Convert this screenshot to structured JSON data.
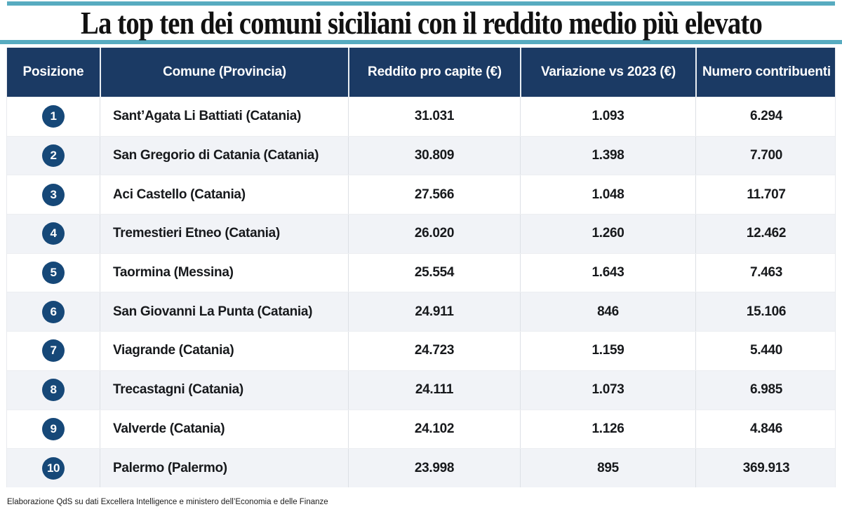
{
  "title": "La top ten dei comuni siciliani con il reddito medio più elevato",
  "table": {
    "headers": [
      "Posizione",
      "Comune (Provincia)",
      "Reddito pro capite (€)",
      "Variazione vs 2023 (€)",
      "Numero contribuenti"
    ],
    "rows": [
      {
        "position": "1",
        "comune": "Sant’Agata Li Battiati (Catania)",
        "reddito": "31.031",
        "variazione": "1.093",
        "contribuenti": "6.294"
      },
      {
        "position": "2",
        "comune": "San Gregorio di Catania (Catania)",
        "reddito": "30.809",
        "variazione": "1.398",
        "contribuenti": "7.700"
      },
      {
        "position": "3",
        "comune": "Aci Castello (Catania)",
        "reddito": "27.566",
        "variazione": "1.048",
        "contribuenti": "11.707"
      },
      {
        "position": "4",
        "comune": "Tremestieri Etneo (Catania)",
        "reddito": "26.020",
        "variazione": "1.260",
        "contribuenti": "12.462"
      },
      {
        "position": "5",
        "comune": "Taormina (Messina)",
        "reddito": "25.554",
        "variazione": "1.643",
        "contribuenti": "7.463"
      },
      {
        "position": "6",
        "comune": "San Giovanni La Punta (Catania)",
        "reddito": "24.911",
        "variazione": "846",
        "contribuenti": "15.106"
      },
      {
        "position": "7",
        "comune": "Viagrande (Catania)",
        "reddito": "24.723",
        "variazione": "1.159",
        "contribuenti": "5.440"
      },
      {
        "position": "8",
        "comune": "Trecastagni (Catania)",
        "reddito": "24.111",
        "variazione": "1.073",
        "contribuenti": "6.985"
      },
      {
        "position": "9",
        "comune": "Valverde (Catania)",
        "reddito": "24.102",
        "variazione": "1.126",
        "contribuenti": "4.846"
      },
      {
        "position": "10",
        "comune": "Palermo (Palermo)",
        "reddito": "23.998",
        "variazione": "895",
        "contribuenti": "369.913"
      }
    ]
  },
  "footer": {
    "source": "Elaborazione QdS su dati Excellera Intelligence e ministero dell’Economia e delle Finanze"
  },
  "colors": {
    "teal_rule": "#57abc0",
    "header_navy": "#1b3a64",
    "badge_navy": "#164878",
    "alt_row": "#f1f3f7",
    "text": "#141414"
  },
  "chart_data": {
    "type": "table",
    "title": "La top ten dei comuni siciliani con il reddito medio più elevato",
    "columns": [
      "Posizione",
      "Comune (Provincia)",
      "Reddito pro capite (€)",
      "Variazione vs 2023 (€)",
      "Numero contribuenti"
    ],
    "rows": [
      [
        1,
        "Sant’Agata Li Battiati (Catania)",
        31031,
        1093,
        6294
      ],
      [
        2,
        "San Gregorio di Catania (Catania)",
        30809,
        1398,
        7700
      ],
      [
        3,
        "Aci Castello (Catania)",
        27566,
        1048,
        11707
      ],
      [
        4,
        "Tremestieri Etneo (Catania)",
        26020,
        1260,
        12462
      ],
      [
        5,
        "Taormina (Messina)",
        25554,
        1643,
        7463
      ],
      [
        6,
        "San Giovanni La Punta (Catania)",
        24911,
        846,
        15106
      ],
      [
        7,
        "Viagrande (Catania)",
        24723,
        1159,
        5440
      ],
      [
        8,
        "Trecastagni (Catania)",
        24111,
        1073,
        6985
      ],
      [
        9,
        "Valverde (Catania)",
        24102,
        1126,
        4846
      ],
      [
        10,
        "Palermo (Palermo)",
        23998,
        895,
        369913
      ]
    ],
    "source_note": "Elaborazione QdS su dati Excellera Intelligence e ministero dell’Economia e delle Finanze"
  }
}
